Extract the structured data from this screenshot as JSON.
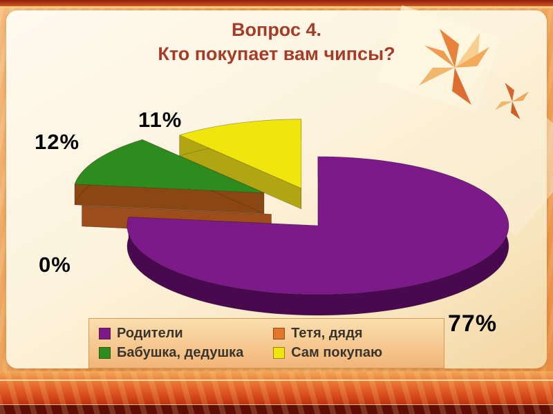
{
  "slide": {
    "title": {
      "line1": "Вопрос 4.",
      "line2": "Кто покупает вам чипсы?"
    }
  },
  "chart_data": {
    "type": "pie",
    "title": "Вопрос 4. Кто покупает вам чипсы?",
    "legend_position": "bottom",
    "labels": [
      "Родители",
      "Тетя, дядя",
      "Бабушка, дедушка",
      "Сам покупаю"
    ],
    "values": [
      77,
      0,
      12,
      11
    ],
    "slices": [
      {
        "label": "Родители",
        "value": 77,
        "pct_label": "77%",
        "color": "#7d1a8a",
        "side_color": "#49094f"
      },
      {
        "label": "Тетя, дядя",
        "value": 0,
        "pct_label": "0%",
        "color": "#e0762f",
        "side_color": "#9c4d1b"
      },
      {
        "label": "Бабушка, дедушка",
        "value": 12,
        "pct_label": "12%",
        "color": "#2e8b1e",
        "side_color": "#8a4713"
      },
      {
        "label": "Сам покупаю",
        "value": 11,
        "pct_label": "11%",
        "color": "#f0e60e",
        "side_color": "#b1a513"
      }
    ]
  }
}
